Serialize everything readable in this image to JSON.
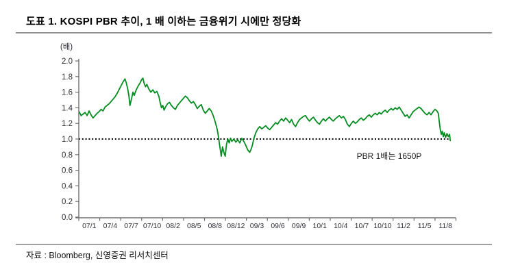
{
  "header": {
    "title": "도표 1. KOSPI PBR 추이, 1 배 이하는 금융위기 시에만 정당화"
  },
  "footer": {
    "source": "자료 : Bloomberg, 신영증권 리서치센터"
  },
  "colors": {
    "series_green": "#008c1e",
    "axis_gray": "#6e6e6e",
    "tick_text": "#2e2e38",
    "reference_black": "#000000",
    "rule_gray": "#909090"
  },
  "chart_data": {
    "type": "line",
    "title": "KOSPI PBR 추이",
    "unit_label": "(배)",
    "ylabel": "(배)",
    "ylim": [
      0.0,
      2.0
    ],
    "ytick_step": 0.2,
    "ytick_labels": [
      "0.0",
      "0.2",
      "0.4",
      "0.6",
      "0.8",
      "1.0",
      "1.2",
      "1.4",
      "1.6",
      "1.8",
      "2.0"
    ],
    "xtick_labels": [
      "07/1",
      "07/4",
      "07/7",
      "07/10",
      "08/2",
      "08/5",
      "08/8",
      "08/12",
      "09/3",
      "09/6",
      "09/9",
      "10/1",
      "10/4",
      "10/7",
      "10/10",
      "11/2",
      "11/5",
      "11/8"
    ],
    "grid": false,
    "legend_position": "none",
    "reference_line": {
      "value": 1.0,
      "style": "dotted",
      "color": "#000000",
      "label": "PBR 1배는 1650P"
    },
    "series": [
      {
        "name": "KOSPI PBR",
        "color": "#008c1e",
        "x_unit": "months since 2007-01",
        "points": [
          [
            0,
            1.35
          ],
          [
            0.3,
            1.3
          ],
          [
            0.6,
            1.32
          ],
          [
            0.9,
            1.34
          ],
          [
            1.2,
            1.3
          ],
          [
            1.5,
            1.36
          ],
          [
            1.8,
            1.31
          ],
          [
            2.1,
            1.27
          ],
          [
            2.4,
            1.3
          ],
          [
            2.7,
            1.33
          ],
          [
            3,
            1.35
          ],
          [
            3.3,
            1.38
          ],
          [
            3.6,
            1.36
          ],
          [
            3.9,
            1.41
          ],
          [
            4.2,
            1.43
          ],
          [
            4.5,
            1.45
          ],
          [
            4.8,
            1.48
          ],
          [
            5.1,
            1.51
          ],
          [
            5.4,
            1.54
          ],
          [
            5.7,
            1.58
          ],
          [
            6,
            1.63
          ],
          [
            6.3,
            1.68
          ],
          [
            6.6,
            1.73
          ],
          [
            6.9,
            1.77
          ],
          [
            7.1,
            1.72
          ],
          [
            7.3,
            1.65
          ],
          [
            7.5,
            1.55
          ],
          [
            7.65,
            1.43
          ],
          [
            7.9,
            1.52
          ],
          [
            8.1,
            1.6
          ],
          [
            8.3,
            1.56
          ],
          [
            8.6,
            1.63
          ],
          [
            8.9,
            1.68
          ],
          [
            9.2,
            1.72
          ],
          [
            9.4,
            1.76
          ],
          [
            9.6,
            1.78
          ],
          [
            9.8,
            1.71
          ],
          [
            10,
            1.67
          ],
          [
            10.2,
            1.7
          ],
          [
            10.5,
            1.64
          ],
          [
            10.8,
            1.6
          ],
          [
            11.1,
            1.63
          ],
          [
            11.4,
            1.59
          ],
          [
            11.7,
            1.61
          ],
          [
            12,
            1.55
          ],
          [
            12.2,
            1.47
          ],
          [
            12.4,
            1.4
          ],
          [
            12.6,
            1.43
          ],
          [
            12.8,
            1.37
          ],
          [
            13,
            1.41
          ],
          [
            13.3,
            1.45
          ],
          [
            13.6,
            1.47
          ],
          [
            13.9,
            1.43
          ],
          [
            14.2,
            1.4
          ],
          [
            14.5,
            1.38
          ],
          [
            14.8,
            1.43
          ],
          [
            15.1,
            1.46
          ],
          [
            15.4,
            1.49
          ],
          [
            15.7,
            1.52
          ],
          [
            16,
            1.55
          ],
          [
            16.3,
            1.53
          ],
          [
            16.6,
            1.49
          ],
          [
            16.9,
            1.46
          ],
          [
            17.2,
            1.48
          ],
          [
            17.5,
            1.44
          ],
          [
            17.8,
            1.39
          ],
          [
            18.1,
            1.42
          ],
          [
            18.4,
            1.44
          ],
          [
            18.7,
            1.37
          ],
          [
            19,
            1.33
          ],
          [
            19.3,
            1.36
          ],
          [
            19.6,
            1.39
          ],
          [
            19.9,
            1.36
          ],
          [
            20.2,
            1.3
          ],
          [
            20.5,
            1.22
          ],
          [
            20.8,
            1.12
          ],
          [
            21,
            1.02
          ],
          [
            21.2,
            0.9
          ],
          [
            21.4,
            0.78
          ],
          [
            21.6,
            0.9
          ],
          [
            21.8,
            0.83
          ],
          [
            22,
            0.78
          ],
          [
            22.2,
            0.93
          ],
          [
            22.4,
            1
          ],
          [
            22.6,
            0.95
          ],
          [
            22.8,
            1.01
          ],
          [
            23,
            0.97
          ],
          [
            23.3,
            1
          ],
          [
            23.6,
            0.96
          ],
          [
            23.9,
            0.99
          ],
          [
            24.2,
            0.95
          ],
          [
            24.5,
            1.01
          ],
          [
            24.8,
            0.97
          ],
          [
            25.1,
            0.92
          ],
          [
            25.4,
            0.86
          ],
          [
            25.7,
            0.83
          ],
          [
            25.9,
            0.87
          ],
          [
            26.1,
            0.92
          ],
          [
            26.3,
            1
          ],
          [
            26.6,
            1.08
          ],
          [
            26.9,
            1.13
          ],
          [
            27.2,
            1.16
          ],
          [
            27.5,
            1.13
          ],
          [
            27.8,
            1.15
          ],
          [
            28.1,
            1.17
          ],
          [
            28.4,
            1.14
          ],
          [
            28.7,
            1.12
          ],
          [
            29,
            1.15
          ],
          [
            29.3,
            1.18
          ],
          [
            29.6,
            1.21
          ],
          [
            29.9,
            1.19
          ],
          [
            30.2,
            1.23
          ],
          [
            30.5,
            1.26
          ],
          [
            30.8,
            1.23
          ],
          [
            31.1,
            1.27
          ],
          [
            31.4,
            1.24
          ],
          [
            31.7,
            1.21
          ],
          [
            32,
            1.25
          ],
          [
            32.3,
            1.19
          ],
          [
            32.6,
            1.16
          ],
          [
            32.9,
            1.21
          ],
          [
            33.2,
            1.25
          ],
          [
            33.5,
            1.27
          ],
          [
            33.8,
            1.29
          ],
          [
            34.1,
            1.3
          ],
          [
            34.4,
            1.26
          ],
          [
            34.7,
            1.23
          ],
          [
            35,
            1.26
          ],
          [
            35.3,
            1.28
          ],
          [
            35.6,
            1.24
          ],
          [
            35.9,
            1.21
          ],
          [
            36.2,
            1.19
          ],
          [
            36.5,
            1.23
          ],
          [
            36.8,
            1.26
          ],
          [
            37.1,
            1.23
          ],
          [
            37.4,
            1.26
          ],
          [
            37.7,
            1.28
          ],
          [
            38,
            1.25
          ],
          [
            38.3,
            1.23
          ],
          [
            38.6,
            1.26
          ],
          [
            38.9,
            1.28
          ],
          [
            39.2,
            1.3
          ],
          [
            39.5,
            1.27
          ],
          [
            39.8,
            1.29
          ],
          [
            40.1,
            1.25
          ],
          [
            40.4,
            1.19
          ],
          [
            40.7,
            1.16
          ],
          [
            41,
            1.2
          ],
          [
            41.3,
            1.23
          ],
          [
            41.6,
            1.2
          ],
          [
            41.9,
            1.22
          ],
          [
            42.2,
            1.25
          ],
          [
            42.5,
            1.27
          ],
          [
            42.8,
            1.24
          ],
          [
            43.1,
            1.26
          ],
          [
            43.4,
            1.29
          ],
          [
            43.7,
            1.31
          ],
          [
            44,
            1.28
          ],
          [
            44.3,
            1.31
          ],
          [
            44.6,
            1.33
          ],
          [
            44.9,
            1.31
          ],
          [
            45.2,
            1.34
          ],
          [
            45.5,
            1.32
          ],
          [
            45.8,
            1.35
          ],
          [
            46.1,
            1.37
          ],
          [
            46.4,
            1.34
          ],
          [
            46.7,
            1.37
          ],
          [
            47,
            1.39
          ],
          [
            47.3,
            1.37
          ],
          [
            47.6,
            1.4
          ],
          [
            47.9,
            1.38
          ],
          [
            48.2,
            1.41
          ],
          [
            48.5,
            1.37
          ],
          [
            48.8,
            1.33
          ],
          [
            49.1,
            1.29
          ],
          [
            49.4,
            1.31
          ],
          [
            49.7,
            1.27
          ],
          [
            50,
            1.31
          ],
          [
            50.3,
            1.35
          ],
          [
            50.6,
            1.37
          ],
          [
            50.9,
            1.39
          ],
          [
            51.2,
            1.41
          ],
          [
            51.5,
            1.39
          ],
          [
            51.8,
            1.36
          ],
          [
            52.1,
            1.33
          ],
          [
            52.4,
            1.31
          ],
          [
            52.7,
            1.34
          ],
          [
            53,
            1.31
          ],
          [
            53.3,
            1.35
          ],
          [
            53.6,
            1.38
          ],
          [
            53.9,
            1.36
          ],
          [
            54.1,
            1.33
          ],
          [
            54.25,
            1.22
          ],
          [
            54.4,
            1.12
          ],
          [
            54.55,
            1.06
          ],
          [
            54.7,
            1.1
          ],
          [
            54.85,
            1.03
          ],
          [
            55,
            1.08
          ],
          [
            55.2,
            1.02
          ],
          [
            55.4,
            1.07
          ],
          [
            55.6,
            1.03
          ],
          [
            55.8,
            1.06
          ],
          [
            55.9,
            0.98
          ]
        ]
      }
    ]
  }
}
